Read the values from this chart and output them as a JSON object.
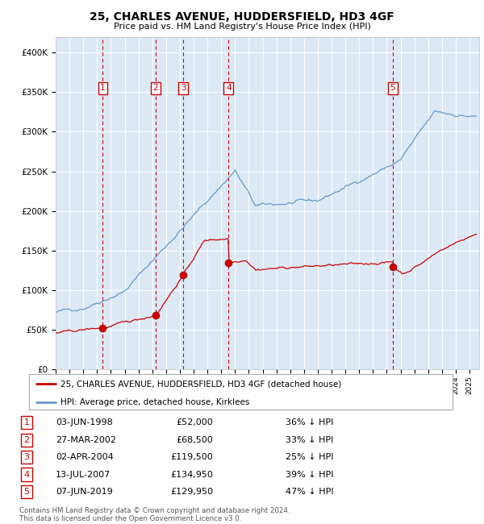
{
  "title": "25, CHARLES AVENUE, HUDDERSFIELD, HD3 4GF",
  "subtitle": "Price paid vs. HM Land Registry's House Price Index (HPI)",
  "background_color": "#ffffff",
  "plot_bg_color": "#dce9f5",
  "grid_color": "#ffffff",
  "ylim": [
    0,
    420000
  ],
  "yticks": [
    0,
    50000,
    100000,
    150000,
    200000,
    250000,
    300000,
    350000,
    400000
  ],
  "ytick_labels": [
    "£0",
    "£50K",
    "£100K",
    "£150K",
    "£200K",
    "£250K",
    "£300K",
    "£350K",
    "£400K"
  ],
  "xlim_start": 1995.0,
  "xlim_end": 2025.7,
  "purchases": [
    {
      "num": 1,
      "date": "1998-06-03",
      "price": 52000,
      "x_decimal": 1998.42
    },
    {
      "num": 2,
      "date": "2002-03-27",
      "price": 68500,
      "x_decimal": 2002.24
    },
    {
      "num": 3,
      "date": "2004-04-02",
      "price": 119500,
      "x_decimal": 2004.25
    },
    {
      "num": 4,
      "date": "2007-07-13",
      "price": 134950,
      "x_decimal": 2007.53
    },
    {
      "num": 5,
      "date": "2019-06-07",
      "price": 129950,
      "x_decimal": 2019.43
    }
  ],
  "purchase_line_color": "#cc0000",
  "purchase_dot_color": "#cc0000",
  "hpi_line_color": "#6699cc",
  "vline_color": "#cc0000",
  "legend_line1": "25, CHARLES AVENUE, HUDDERSFIELD, HD3 4GF (detached house)",
  "legend_line2": "HPI: Average price, detached house, Kirklees",
  "footer1": "Contains HM Land Registry data © Crown copyright and database right 2024.",
  "footer2": "This data is licensed under the Open Government Licence v3.0.",
  "table_rows": [
    {
      "num": 1,
      "date": "03-JUN-1998",
      "price": "£52,000",
      "hpi": "36% ↓ HPI"
    },
    {
      "num": 2,
      "date": "27-MAR-2002",
      "price": "£68,500",
      "hpi": "33% ↓ HPI"
    },
    {
      "num": 3,
      "date": "02-APR-2004",
      "price": "£119,500",
      "hpi": "25% ↓ HPI"
    },
    {
      "num": 4,
      "date": "13-JUL-2007",
      "price": "£134,950",
      "hpi": "39% ↓ HPI"
    },
    {
      "num": 5,
      "date": "07-JUN-2019",
      "price": "£129,950",
      "hpi": "47% ↓ HPI"
    }
  ]
}
